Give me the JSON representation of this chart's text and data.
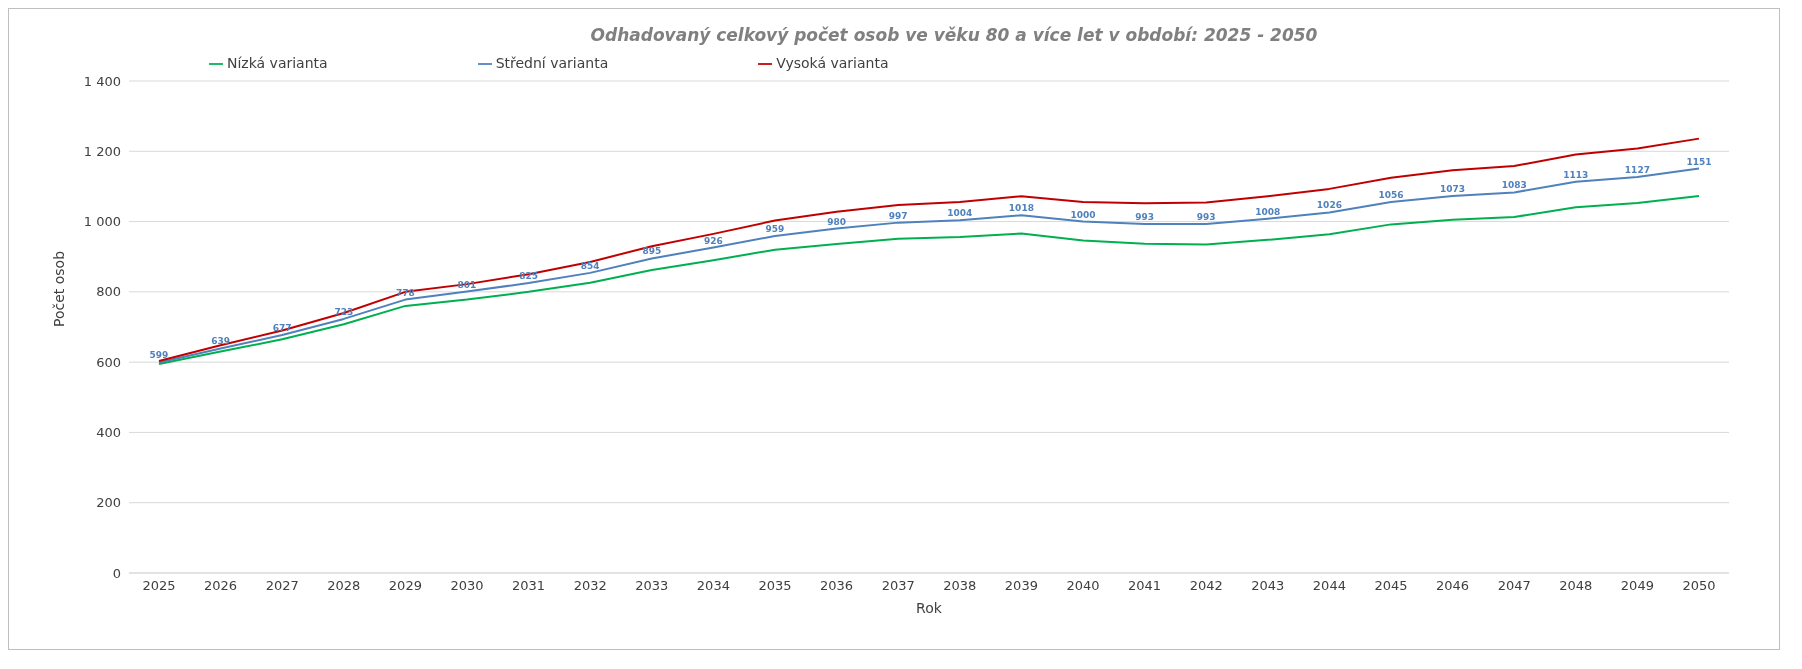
{
  "chart_data": {
    "type": "line",
    "title": "Odhadovaný celkový počet osob ve věku 80 a více let  v období: 2025 - 2050",
    "xlabel": "Rok",
    "ylabel": "Počet osob",
    "categories": [
      "2025",
      "2026",
      "2027",
      "2028",
      "2029",
      "2030",
      "2031",
      "2032",
      "2033",
      "2034",
      "2035",
      "2036",
      "2037",
      "2038",
      "2039",
      "2040",
      "2041",
      "2042",
      "2043",
      "2044",
      "2045",
      "2046",
      "2047",
      "2048",
      "2049",
      "2050"
    ],
    "series": [
      {
        "name": "Nízká varianta",
        "color": "#00b050",
        "values": [
          595,
          630,
          665,
          708,
          760,
          778,
          800,
          826,
          862,
          890,
          920,
          936,
          951,
          956,
          966,
          946,
          937,
          935,
          948,
          964,
          992,
          1005,
          1013,
          1041,
          1053,
          1073
        ]
      },
      {
        "name": "Střední varianta",
        "color": "#4f81bd",
        "values": [
          599,
          639,
          677,
          723,
          778,
          801,
          825,
          854,
          895,
          926,
          959,
          980,
          997,
          1004,
          1018,
          1000,
          993,
          993,
          1008,
          1026,
          1056,
          1073,
          1083,
          1113,
          1127,
          1151
        ],
        "value_labels": [
          "599",
          "639",
          "677",
          "723",
          "778",
          "801",
          "825",
          "854",
          "895",
          "926",
          "959",
          "980",
          "997",
          "1004",
          "1018",
          "1000",
          "993",
          "993",
          "1008",
          "1026",
          "1056",
          "1073",
          "1083",
          "1113",
          "1127",
          "1151"
        ]
      },
      {
        "name": "Vysoká varianta",
        "color": "#c00000",
        "values": [
          603,
          648,
          690,
          740,
          800,
          822,
          850,
          885,
          930,
          965,
          1003,
          1028,
          1047,
          1056,
          1072,
          1056,
          1052,
          1054,
          1072,
          1093,
          1125,
          1146,
          1158,
          1191,
          1208,
          1236
        ]
      }
    ],
    "ylim": [
      0,
      1400
    ],
    "yticks": [
      {
        "value": 0,
        "label": "0"
      },
      {
        "value": 200,
        "label": "200"
      },
      {
        "value": 400,
        "label": "400"
      },
      {
        "value": 600,
        "label": "600"
      },
      {
        "value": 800,
        "label": "800"
      },
      {
        "value": 1000,
        "label": "1 000"
      },
      {
        "value": 1200,
        "label": "1 200"
      },
      {
        "value": 1400,
        "label": "1 400"
      }
    ],
    "grid": "y",
    "legend": "top left",
    "marker": "none",
    "line_style": "solid"
  }
}
